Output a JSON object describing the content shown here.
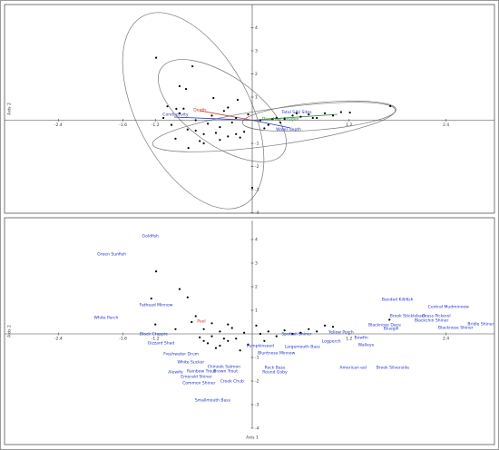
{
  "chart_data": [
    {
      "type": "scatter",
      "x_label": "Axis 1",
      "y_label": "Axis 2",
      "color": "#000000",
      "xlim": [
        -3.0,
        3.0
      ],
      "ylim": [
        -4,
        5
      ],
      "xticks": [
        -2.4,
        -1.6,
        -1.2,
        1.2,
        2.4
      ],
      "yticks": [
        4,
        3,
        2,
        1,
        -1,
        -2,
        -3,
        -4
      ],
      "x": [
        -1.19,
        -0.74,
        -0.9,
        -0.82,
        -0.94,
        -0.48,
        -0.18,
        -0.79,
        0.0,
        1.71,
        1.21,
        -1.1,
        -1.0,
        -0.9,
        -0.8,
        -0.7,
        -0.6,
        -0.5,
        -0.4,
        -0.3,
        -0.2,
        -0.1,
        0.1,
        0.2,
        0.3,
        0.4,
        0.5,
        0.6,
        0.7,
        0.8,
        0.9,
        1.0,
        1.1,
        -0.95,
        -0.85,
        -0.65,
        -0.55,
        -0.45,
        -0.35,
        -0.25,
        -0.15,
        -0.05,
        0.15,
        0.35,
        0.55,
        0.75,
        -0.6,
        -0.4,
        -0.2,
        -1.05,
        0.25,
        -0.7,
        -0.3
      ],
      "values": [
        2.7,
        2.33,
        1.47,
        1.35,
        0.49,
        0.96,
        0.88,
        -1.2,
        -2.92,
        0.61,
        0.33,
        0.1,
        -0.2,
        0.3,
        -0.4,
        0.0,
        -0.6,
        0.2,
        -0.3,
        -0.7,
        0.1,
        -0.5,
        0.0,
        -0.2,
        0.1,
        0.05,
        0.2,
        0.15,
        0.25,
        0.1,
        0.3,
        0.2,
        0.35,
        -0.8,
        0.5,
        -0.9,
        -0.15,
        -0.55,
        0.4,
        -0.1,
        -0.75,
        0.25,
        -0.35,
        -0.1,
        0.3,
        0.1,
        -1.0,
        -0.85,
        -0.6,
        0.6,
        0.05,
        -0.45,
        0.55
      ],
      "annotations": [
        {
          "text": "Conductivity",
          "x": -0.95,
          "y": 0.25,
          "color": "#2233cc"
        },
        {
          "text": "Depth",
          "x": -0.65,
          "y": 0.45,
          "color": "#cc3322"
        },
        {
          "text": "Total SAV Sites",
          "x": 0.55,
          "y": 0.35,
          "color": "#2233cc"
        },
        {
          "text": "Dissolved Oxygen",
          "x": 0.35,
          "y": 0.05,
          "color": "#228833"
        },
        {
          "text": "Water depth",
          "x": 0.45,
          "y": -0.4,
          "color": "#2233cc"
        }
      ]
    },
    {
      "type": "scatter",
      "x_label": "Axis 1",
      "y_label": "Axis 2",
      "color": "#000000",
      "xlim": [
        -3.0,
        3.0
      ],
      "ylim": [
        -4,
        4.8
      ],
      "xticks": [
        -2.4,
        -1.6,
        -1.2,
        1.2,
        2.4
      ],
      "yticks": [
        4,
        3,
        2,
        1,
        -1,
        -2,
        -3,
        -4
      ],
      "x": [
        -1.19,
        -1.25,
        -0.9,
        -0.8,
        -0.7,
        -1.2,
        -0.95,
        1.7,
        0.9,
        1.0,
        -0.6,
        -0.5,
        -0.4,
        -0.3,
        -0.2,
        -0.1,
        0.1,
        0.2,
        0.3,
        0.4,
        0.5,
        0.6,
        0.7,
        0.8,
        -0.55,
        -0.45,
        -0.35,
        -0.25,
        -0.65,
        -0.75,
        -0.05,
        0.15,
        -0.15,
        0.05,
        -0.5,
        -0.3,
        -0.6,
        -0.4
      ],
      "values": [
        2.65,
        1.5,
        1.9,
        1.55,
        0.75,
        0.4,
        0.2,
        0.6,
        0.35,
        0.3,
        0.2,
        -0.1,
        0.1,
        -0.3,
        -0.2,
        0.05,
        0.0,
        0.1,
        -0.1,
        0.15,
        0.0,
        0.05,
        0.2,
        0.1,
        -0.4,
        -0.6,
        -0.2,
        0.25,
        -0.15,
        0.5,
        -0.45,
        -0.3,
        -0.7,
        0.35,
        0.45,
        0.4,
        -0.3,
        -0.5
      ],
      "annotations": [
        {
          "text": "Goldfish",
          "x": -1.26,
          "y": 4.15,
          "color": "#2233cc"
        },
        {
          "text": "Green Sunfish",
          "x": -1.74,
          "y": 3.38,
          "color": "#2233cc"
        },
        {
          "text": "Fathead Minnow",
          "x": -1.19,
          "y": 1.23,
          "color": "#2233cc"
        },
        {
          "text": "White Perch",
          "x": -1.81,
          "y": 0.69,
          "color": "#2233cc"
        },
        {
          "text": "Pool",
          "x": -0.63,
          "y": 0.54,
          "color": "#cc3322"
        },
        {
          "text": "Black Crappie",
          "x": -1.22,
          "y": 0.0,
          "color": "#2233cc"
        },
        {
          "text": "Gizzard Shad",
          "x": -1.13,
          "y": -0.38,
          "color": "#2233cc"
        },
        {
          "text": "Freshwater Drum",
          "x": -0.88,
          "y": -0.85,
          "color": "#2233cc"
        },
        {
          "text": "White Sucker",
          "x": -0.76,
          "y": -1.19,
          "color": "#2233cc"
        },
        {
          "text": "Chinook Salmon",
          "x": -0.35,
          "y": -1.38,
          "color": "#2233cc"
        },
        {
          "text": "Alewife",
          "x": -0.95,
          "y": -1.62,
          "color": "#2233cc"
        },
        {
          "text": "Rainbow Trout",
          "x": -0.63,
          "y": -1.58,
          "color": "#2233cc"
        },
        {
          "text": "Brown Trout",
          "x": -0.33,
          "y": -1.58,
          "color": "#2233cc"
        },
        {
          "text": "Emerald Shiner",
          "x": -0.69,
          "y": -1.81,
          "color": "#2233cc"
        },
        {
          "text": "Creek Chub",
          "x": -0.25,
          "y": -2.0,
          "color": "#2233cc"
        },
        {
          "text": "Common Shiner",
          "x": -0.66,
          "y": -2.08,
          "color": "#2233cc"
        },
        {
          "text": "Round Goby",
          "x": 0.28,
          "y": -1.62,
          "color": "#2233cc"
        },
        {
          "text": "Smallmouth Bass",
          "x": -0.49,
          "y": -2.81,
          "color": "#2233cc"
        },
        {
          "text": "Rock Bass",
          "x": 0.28,
          "y": -1.42,
          "color": "#2233cc"
        },
        {
          "text": "Largemouth Bass",
          "x": 0.62,
          "y": -0.54,
          "color": "#2233cc"
        },
        {
          "text": "Pumpkinseed",
          "x": 0.1,
          "y": -0.5,
          "color": "#2233cc"
        },
        {
          "text": "Bluntnose Minnow",
          "x": 0.3,
          "y": -0.8,
          "color": "#2233cc"
        },
        {
          "text": "Spottail Shiner",
          "x": 0.55,
          "y": 0.0,
          "color": "#2233cc"
        },
        {
          "text": "Logperch",
          "x": 0.98,
          "y": -0.31,
          "color": "#2233cc"
        },
        {
          "text": "Yellow Perch",
          "x": 1.1,
          "y": 0.08,
          "color": "#2233cc"
        },
        {
          "text": "Bowfin",
          "x": 1.35,
          "y": -0.15,
          "color": "#2233cc"
        },
        {
          "text": "Walleye",
          "x": 1.41,
          "y": -0.46,
          "color": "#2233cc"
        },
        {
          "text": "Banded Killifish",
          "x": 1.8,
          "y": 1.46,
          "color": "#2233cc"
        },
        {
          "text": "Central Mudminnow",
          "x": 2.43,
          "y": 1.15,
          "color": "#2233cc"
        },
        {
          "text": "Brook Stickleback",
          "x": 1.93,
          "y": 0.77,
          "color": "#2233cc"
        },
        {
          "text": "Grass Pickerel",
          "x": 2.28,
          "y": 0.77,
          "color": "#2233cc"
        },
        {
          "text": "Blackchin Shiner",
          "x": 2.22,
          "y": 0.58,
          "color": "#2233cc"
        },
        {
          "text": "Blacknose Dace",
          "x": 1.64,
          "y": 0.38,
          "color": "#2233cc"
        },
        {
          "text": "Bluegill",
          "x": 1.72,
          "y": 0.23,
          "color": "#2233cc"
        },
        {
          "text": "Blacknose Shiner",
          "x": 2.52,
          "y": 0.27,
          "color": "#2233cc"
        },
        {
          "text": "Bridle Shiner",
          "x": 2.83,
          "y": 0.42,
          "color": "#2233cc"
        },
        {
          "text": "American eel",
          "x": 1.25,
          "y": -1.42,
          "color": "#2233cc"
        },
        {
          "text": "Brook Silverside",
          "x": 1.74,
          "y": -1.42,
          "color": "#2233cc"
        }
      ]
    }
  ]
}
